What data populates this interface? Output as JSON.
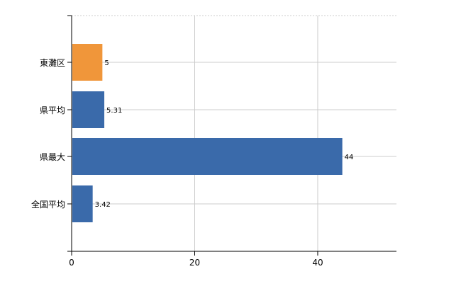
{
  "chart_data": {
    "type": "bar",
    "orientation": "horizontal",
    "categories": [
      "東灘区",
      "県平均",
      "県最大",
      "全国平均"
    ],
    "values": [
      5,
      5.31,
      44,
      3.42
    ],
    "data_labels": [
      "5",
      "5.31",
      "44",
      "3.42"
    ],
    "bar_colors": [
      "#f0963a",
      "#3a6aaa",
      "#3a6aaa",
      "#3a6aaa"
    ],
    "xlim": [
      0,
      52.8
    ],
    "x_ticks": [
      0,
      20,
      40
    ],
    "x_tick_labels": [
      "0",
      "20",
      "40"
    ],
    "grid": true,
    "grid_color": "#cccccc",
    "legend": "none"
  }
}
